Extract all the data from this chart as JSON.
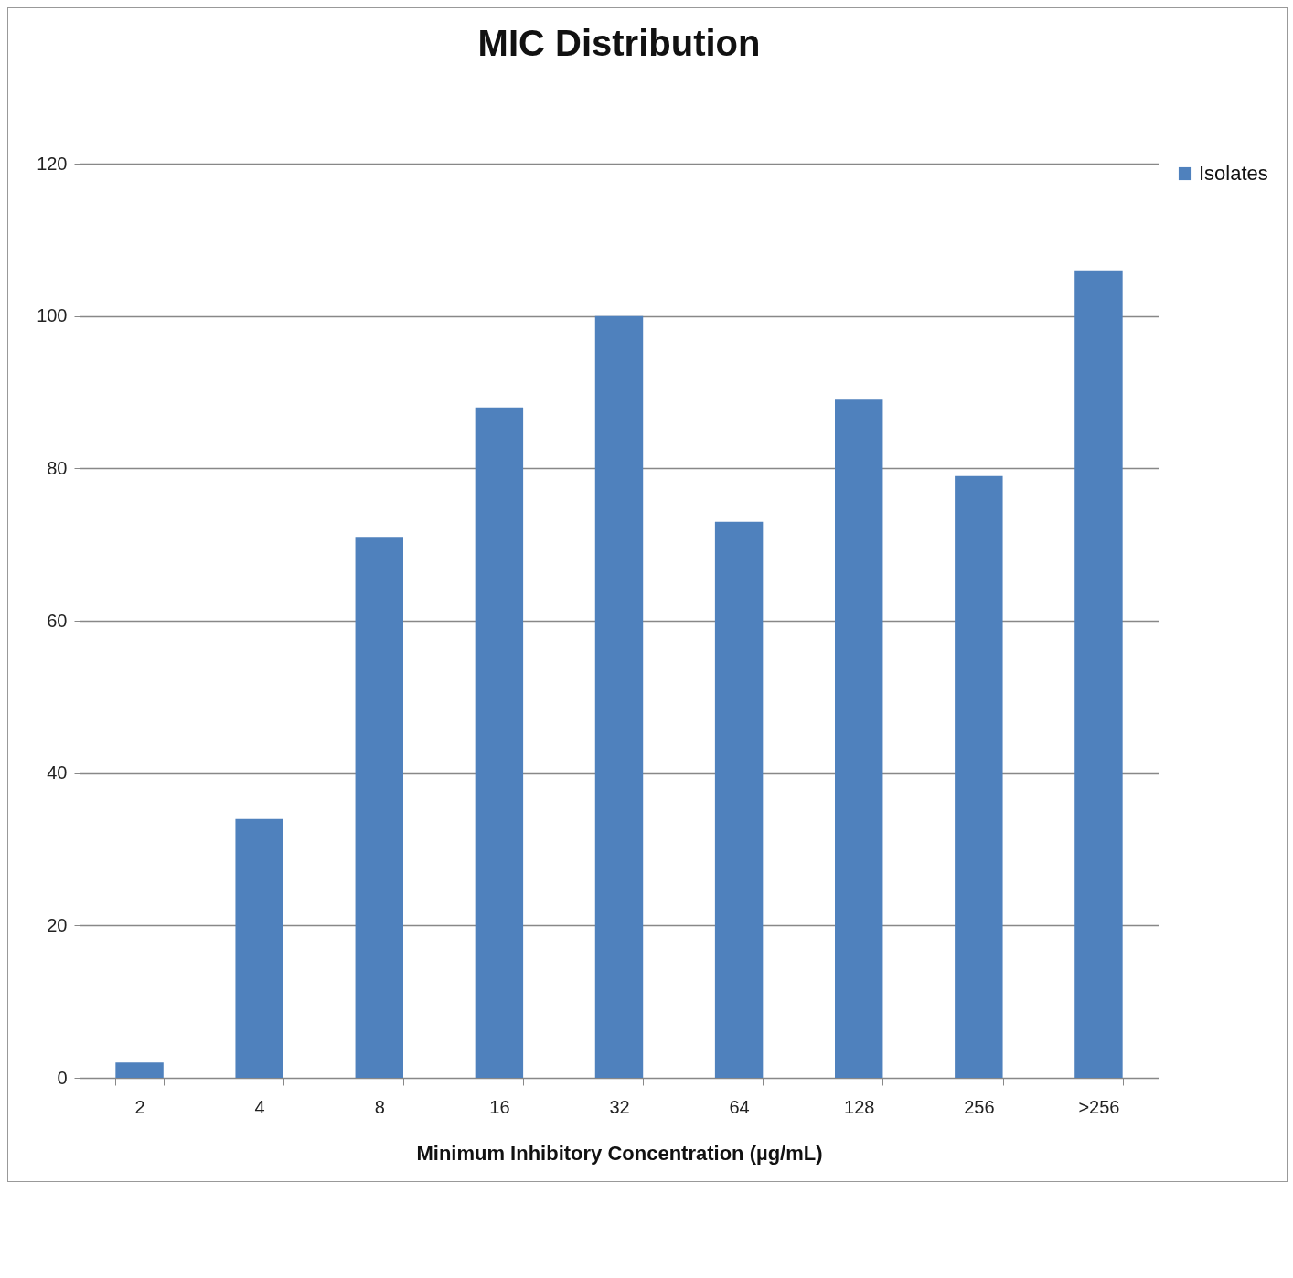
{
  "chart_data": {
    "type": "bar",
    "title": "MIC Distribution",
    "xlabel": "Minimum Inhibitory Concentration (µg/mL)",
    "categories": [
      "2",
      "4",
      "8",
      "16",
      "32",
      "64",
      "128",
      "256",
      ">256"
    ],
    "series": [
      {
        "name": "Isolates",
        "color": "#4f81bd",
        "values": [
          2,
          34,
          71,
          88,
          100,
          73,
          89,
          79,
          106
        ]
      }
    ],
    "ylim": [
      0,
      120
    ],
    "yticks": [
      0,
      20,
      40,
      60,
      80,
      100,
      120
    ],
    "grid": "y",
    "legend": "right"
  }
}
